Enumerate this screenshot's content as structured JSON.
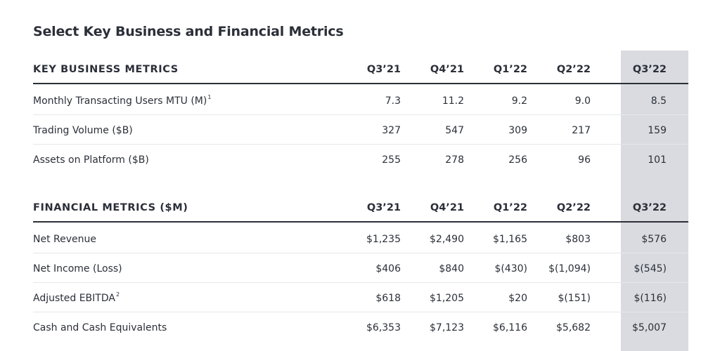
{
  "title": "Select Key Business and Financial Metrics",
  "business": {
    "heading": "KEY BUSINESS METRICS",
    "columns": [
      "Q3’21",
      "Q4’21",
      "Q1’22",
      "Q2’22",
      "Q3’22"
    ],
    "rows": [
      {
        "label": "Monthly Transacting Users MTU (M)",
        "sup": "1",
        "values": [
          "7.3",
          "11.2",
          "9.2",
          "9.0",
          "8.5"
        ]
      },
      {
        "label": "Trading Volume ($B)",
        "sup": "",
        "values": [
          "327",
          "547",
          "309",
          "217",
          "159"
        ]
      },
      {
        "label": "Assets on Platform ($B)",
        "sup": "",
        "values": [
          "255",
          "278",
          "256",
          "96",
          "101"
        ]
      }
    ]
  },
  "financial": {
    "heading": "FINANCIAL METRICS ($M)",
    "columns": [
      "Q3’21",
      "Q4’21",
      "Q1’22",
      "Q2’22",
      "Q3’22"
    ],
    "rows": [
      {
        "label": "Net Revenue",
        "sup": "",
        "values": [
          "$1,235",
          "$2,490",
          "$1,165",
          "$803",
          "$576"
        ]
      },
      {
        "label": "Net Income (Loss)",
        "sup": "",
        "values": [
          "$406",
          "$840",
          "$(430)",
          "$(1,094)",
          "$(545)"
        ]
      },
      {
        "label": "Adjusted EBITDA",
        "sup": "2",
        "values": [
          "$618",
          "$1,205",
          "$20",
          "$(151)",
          "$(116)"
        ]
      },
      {
        "label": "Cash and Cash Equivalents",
        "sup": "",
        "values": [
          "$6,353",
          "$7,123",
          "$6,116",
          "$5,682",
          "$5,007"
        ]
      }
    ]
  },
  "colors": {
    "highlight": "#d9dbe0",
    "text": "#2b2f38"
  }
}
